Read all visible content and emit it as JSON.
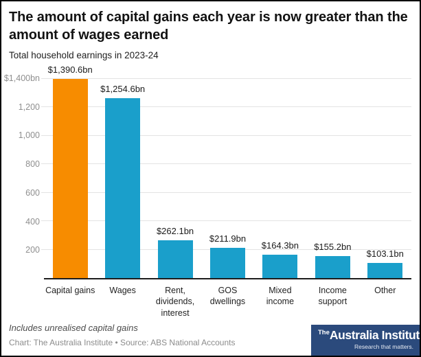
{
  "header": {
    "title": "The amount of capital gains each year is now greater than the amount of wages earned",
    "subtitle": "Total household earnings in 2023-24"
  },
  "chart_data": {
    "type": "bar",
    "title": "The amount of capital gains each year is now greater than the amount of wages earned",
    "subtitle": "Total household earnings in 2023-24",
    "categories": [
      "Capital gains",
      "Wages",
      "Rent,\ndividends,\ninterest",
      "GOS\ndwellings",
      "Mixed\nincome",
      "Income\nsupport",
      "Other"
    ],
    "values": [
      1390.6,
      1254.6,
      262.1,
      211.9,
      164.3,
      155.2,
      103.1
    ],
    "value_labels": [
      "$1,390.6bn",
      "$1,254.6bn",
      "$262.1bn",
      "$211.9bn",
      "$164.3bn",
      "$155.2bn",
      "$103.1bn"
    ],
    "bar_colors": [
      "#F78C00",
      "#1A9FCB",
      "#1A9FCB",
      "#1A9FCB",
      "#1A9FCB",
      "#1A9FCB",
      "#1A9FCB"
    ],
    "xlabel": "",
    "ylabel": "",
    "ylim": [
      0,
      1400
    ],
    "yticks": [
      {
        "value": 200,
        "label": "200"
      },
      {
        "value": 400,
        "label": "400"
      },
      {
        "value": 600,
        "label": "600"
      },
      {
        "value": 800,
        "label": "800"
      },
      {
        "value": 1000,
        "label": "1,000"
      },
      {
        "value": 1200,
        "label": "1,200"
      },
      {
        "value": 1400,
        "label": "$1,400bn"
      }
    ],
    "grid": true,
    "legend": "none"
  },
  "footer": {
    "note": "Includes unrealised capital gains",
    "credit": "Chart: The Australia Institute  • Source: ABS National Accounts"
  },
  "logo": {
    "prefix": "The",
    "name": "Australia Institute",
    "tagline": "Research that matters.",
    "bg_color": "#2B4A7C"
  },
  "colors": {
    "accent_orange": "#F78C00",
    "accent_blue": "#1A9FCB",
    "logo_navy": "#2B4A7C",
    "gridline": "#e3e3e3",
    "axis_line": "#1c1c1c"
  }
}
